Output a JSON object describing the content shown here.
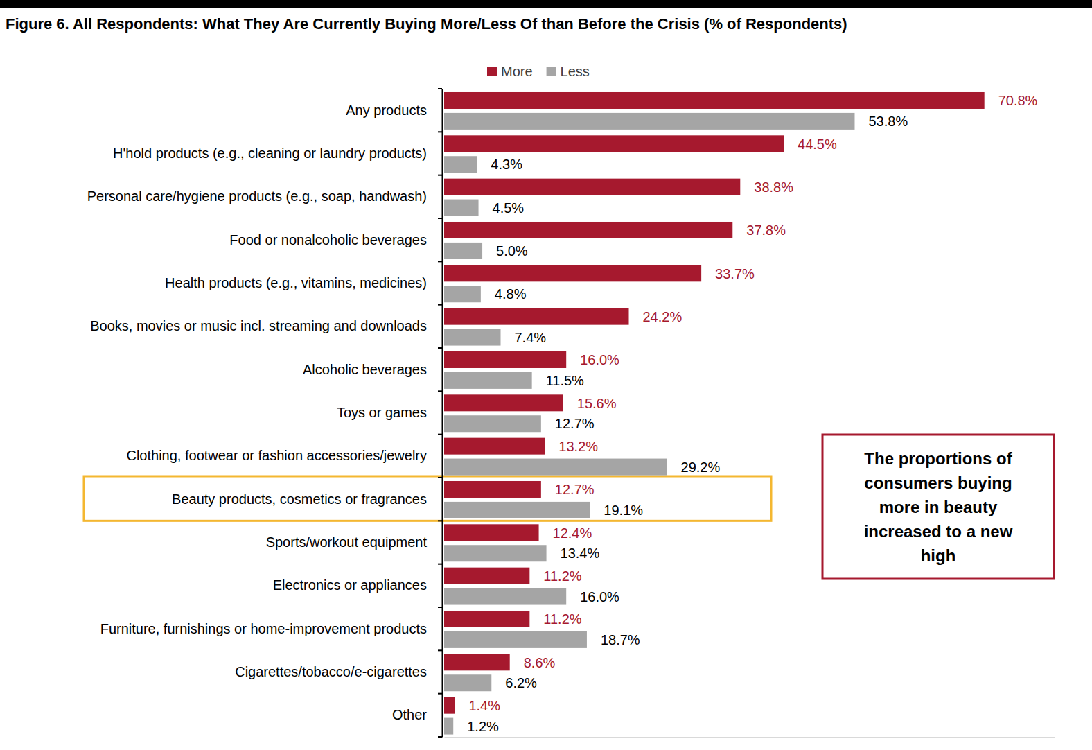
{
  "chart_data": {
    "type": "bar",
    "orientation": "horizontal",
    "title": "Figure 6. All Respondents: What They Are Currently Buying More/Less Of than Before the Crisis (% of Respondents)",
    "categories": [
      "Any products",
      "H'hold products (e.g., cleaning or laundry products)",
      "Personal care/hygiene products (e.g., soap, handwash)",
      "Food or nonalcoholic beverages",
      "Health products (e.g., vitamins, medicines)",
      "Books, movies or music incl. streaming and downloads",
      "Alcoholic beverages",
      "Toys or games",
      "Clothing, footwear or fashion accessories/jewelry",
      "Beauty products, cosmetics or fragrances",
      "Sports/workout equipment",
      "Electronics or appliances",
      "Furniture, furnishings or home-improvement products",
      "Cigarettes/tobacco/e-cigarettes",
      "Other"
    ],
    "series": [
      {
        "name": "More",
        "color": "#a6192e",
        "values": [
          70.8,
          44.5,
          38.8,
          37.8,
          33.7,
          24.2,
          16.0,
          15.6,
          13.2,
          12.7,
          12.4,
          11.2,
          11.2,
          8.6,
          1.4
        ],
        "value_labels": [
          "70.8%",
          "44.5%",
          "38.8%",
          "37.8%",
          "33.7%",
          "24.2%",
          "16.0%",
          "15.6%",
          "13.2%",
          "12.7%",
          "12.4%",
          "11.2%",
          "11.2%",
          "8.6%",
          "1.4%"
        ]
      },
      {
        "name": "Less",
        "color": "#a5a5a5",
        "values": [
          53.8,
          4.3,
          4.5,
          5.0,
          4.8,
          7.4,
          11.5,
          12.7,
          29.2,
          19.1,
          13.4,
          16.0,
          18.7,
          6.2,
          1.2
        ],
        "value_labels": [
          "53.8%",
          "4.3%",
          "4.5%",
          "5.0%",
          "4.8%",
          "7.4%",
          "11.5%",
          "12.7%",
          "29.2%",
          "19.1%",
          "13.4%",
          "16.0%",
          "18.7%",
          "6.2%",
          "1.2%"
        ]
      }
    ],
    "xlim": [
      0,
      80
    ],
    "data_labels": true,
    "tick_labels": "y",
    "legend": "top",
    "annotations": [
      {
        "text": "The proportions of consumers buying more in beauty increased to a new high"
      }
    ]
  }
}
